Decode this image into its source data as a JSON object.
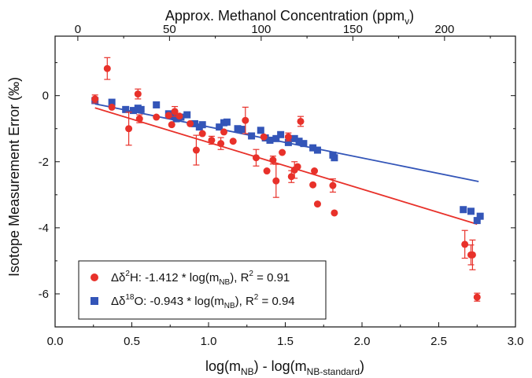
{
  "chart_data": {
    "type": "scatter",
    "xlabel": {
      "main": "log(m",
      "sub1": "NB",
      "mid": ") - log(m",
      "sub2": "NB-standard",
      "end": ")"
    },
    "ylabel": "Isotope Measurement Error (‰)",
    "x2label": {
      "main": "Approx. Methanol Concentration (ppm",
      "sub": "v",
      "end": ")"
    },
    "xlim": [
      0.0,
      3.0
    ],
    "ylim": [
      -7.0,
      1.8
    ],
    "x2lim": [
      -12.4,
      238.7
    ],
    "xticks": [
      "0.0",
      "0.5",
      "1.0",
      "1.5",
      "2.0",
      "2.5",
      "3.0"
    ],
    "yticks": [
      "0",
      "-2",
      "-4",
      "-6"
    ],
    "x2ticks": [
      "0",
      "50",
      "100",
      "150",
      "200"
    ],
    "grid": false,
    "legend_position": "bottom-left",
    "series": [
      {
        "name": "H",
        "legend": {
          "pre": "Δδ",
          "sup": "2",
          "mid": "H: -1.412 * log(m",
          "sub": "NB",
          "post": "), R",
          "sup2": "2",
          "end": " = 0.91"
        },
        "color": "#e8312a",
        "marker": "circle",
        "fit": {
          "x": [
            0.26,
            2.75
          ],
          "y": [
            -0.37,
            -3.89
          ]
        },
        "points": [
          [
            0.26,
            -0.1,
            0.12
          ],
          [
            0.34,
            0.82,
            0.33
          ],
          [
            0.37,
            -0.35,
            0.1
          ],
          [
            0.48,
            -1.0,
            0.5
          ],
          [
            0.54,
            0.05,
            0.15
          ],
          [
            0.55,
            -0.7,
            0.12
          ],
          [
            0.66,
            -0.65,
            0.1
          ],
          [
            0.74,
            -0.6,
            0.1
          ],
          [
            0.76,
            -0.88,
            0.1
          ],
          [
            0.78,
            -0.48,
            0.15
          ],
          [
            0.81,
            -0.62,
            0.1
          ],
          [
            0.88,
            -0.85,
            0.1
          ],
          [
            0.92,
            -1.65,
            0.45
          ],
          [
            0.96,
            -1.15,
            0.1
          ],
          [
            1.02,
            -1.35,
            0.12
          ],
          [
            1.08,
            -1.45,
            0.18
          ],
          [
            1.1,
            -1.1,
            0.1
          ],
          [
            1.16,
            -1.38,
            0.1
          ],
          [
            1.24,
            -0.75,
            0.4
          ],
          [
            1.31,
            -1.88,
            0.25
          ],
          [
            1.36,
            -1.25,
            0.1
          ],
          [
            1.38,
            -2.28,
            0.1
          ],
          [
            1.42,
            -1.95,
            0.12
          ],
          [
            1.44,
            -2.58,
            0.5
          ],
          [
            1.48,
            -1.72,
            0.1
          ],
          [
            1.52,
            -1.25,
            0.12
          ],
          [
            1.54,
            -2.45,
            0.18
          ],
          [
            1.56,
            -2.25,
            0.25
          ],
          [
            1.58,
            -2.15,
            0.1
          ],
          [
            1.6,
            -0.78,
            0.15
          ],
          [
            1.68,
            -2.7,
            0.1
          ],
          [
            1.69,
            -2.28,
            0.1
          ],
          [
            1.71,
            -3.28,
            0.1
          ],
          [
            1.81,
            -2.72,
            0.2
          ],
          [
            1.82,
            -3.55,
            0.1
          ],
          [
            2.67,
            -4.5,
            0.42
          ],
          [
            2.71,
            -4.82,
            0.3
          ],
          [
            2.72,
            -4.82,
            0.45
          ],
          [
            2.75,
            -6.1,
            0.12
          ]
        ]
      },
      {
        "name": "O",
        "legend": {
          "pre": "Δδ",
          "sup": "18",
          "mid": "O: -0.943 * log(m",
          "sub": "NB",
          "post": "), R",
          "sup2": "2",
          "end": " = 0.94"
        },
        "color": "#3355b8",
        "marker": "square",
        "fit": {
          "x": [
            0.26,
            2.76
          ],
          "y": [
            -0.25,
            -2.6
          ]
        },
        "points": [
          [
            0.26,
            -0.15
          ],
          [
            0.37,
            -0.2
          ],
          [
            0.46,
            -0.42
          ],
          [
            0.51,
            -0.45
          ],
          [
            0.54,
            -0.38
          ],
          [
            0.56,
            -0.42
          ],
          [
            0.66,
            -0.28
          ],
          [
            0.74,
            -0.55
          ],
          [
            0.77,
            -0.62
          ],
          [
            0.79,
            -0.7
          ],
          [
            0.82,
            -0.65
          ],
          [
            0.86,
            -0.58
          ],
          [
            0.91,
            -0.85
          ],
          [
            0.94,
            -0.95
          ],
          [
            0.96,
            -0.88
          ],
          [
            1.07,
            -0.95
          ],
          [
            1.1,
            -0.82
          ],
          [
            1.12,
            -0.8
          ],
          [
            1.19,
            -1.0
          ],
          [
            1.22,
            -1.02
          ],
          [
            1.28,
            -1.22
          ],
          [
            1.34,
            -1.05
          ],
          [
            1.37,
            -1.28
          ],
          [
            1.4,
            -1.35
          ],
          [
            1.44,
            -1.3
          ],
          [
            1.47,
            -1.18
          ],
          [
            1.52,
            -1.42
          ],
          [
            1.56,
            -1.3
          ],
          [
            1.59,
            -1.38
          ],
          [
            1.62,
            -1.45
          ],
          [
            1.68,
            -1.58
          ],
          [
            1.71,
            -1.65
          ],
          [
            1.81,
            -1.8
          ],
          [
            1.82,
            -1.88
          ],
          [
            2.66,
            -3.45
          ],
          [
            2.71,
            -3.5
          ],
          [
            2.75,
            -3.78
          ],
          [
            2.77,
            -3.65
          ]
        ]
      }
    ]
  }
}
